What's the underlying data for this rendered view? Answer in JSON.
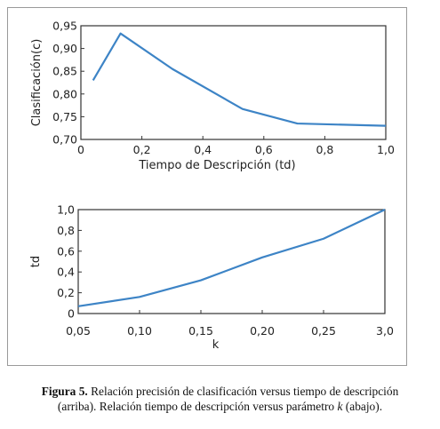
{
  "chart_data": [
    {
      "type": "line",
      "xlabel": "Tiempo de Descripción (td)",
      "ylabel": "Clasificación(c)",
      "xlim": [
        0,
        1.0
      ],
      "ylim": [
        0.7,
        0.95
      ],
      "xticks": [
        "0",
        "0,2",
        "0,4",
        "0,6",
        "0,8",
        "1,0"
      ],
      "yticks": [
        "0,70",
        "0,75",
        "0,80",
        "0,85",
        "0,90",
        "0,95"
      ],
      "series": [
        {
          "x": [
            0.04,
            0.13,
            0.3,
            0.53,
            0.71,
            1.0
          ],
          "y": [
            0.83,
            0.933,
            0.855,
            0.767,
            0.735,
            0.73
          ]
        }
      ],
      "grid": false,
      "color": "#3d84c6"
    },
    {
      "type": "line",
      "xlabel": "k",
      "ylabel": "td",
      "categories": [
        "0,05",
        "0,10",
        "0,15",
        "0,20",
        "0,25",
        "3,0"
      ],
      "ylim": [
        0,
        1.0
      ],
      "yticks": [
        "0",
        "0,2",
        "0,4",
        "0,6",
        "0,8",
        "1,0"
      ],
      "series": [
        {
          "values": [
            0.07,
            0.16,
            0.32,
            0.54,
            0.72,
            1.0
          ]
        }
      ],
      "grid": false,
      "color": "#3d84c6"
    }
  ],
  "caption": {
    "label": "Figura 5.",
    "line1": " Relación precisión de clasificación versus tiempo de descripción",
    "line2a": "(arriba). Relación tiempo de descripción versus parámetro ",
    "k": "k",
    "line2b": " (abajo)."
  }
}
